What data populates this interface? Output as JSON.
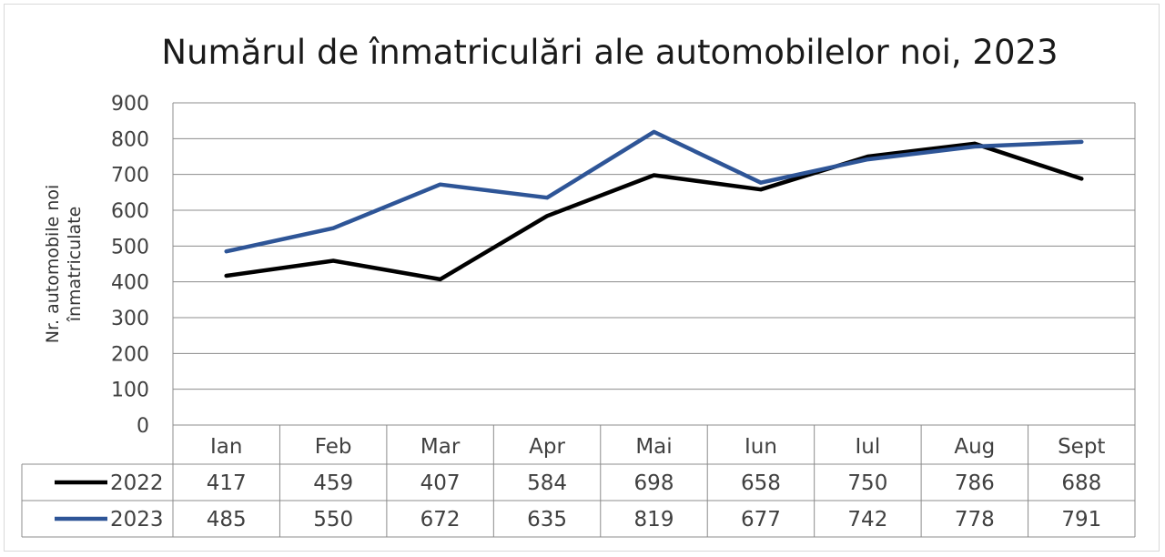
{
  "chart_data": {
    "type": "line",
    "title": "Numărul de înmatriculări ale automobilelor noi, 2023",
    "ylabel_line1": "Nr. automobile noi",
    "ylabel_line2": "înmatriculate",
    "categories": [
      "Ian",
      "Feb",
      "Mar",
      "Apr",
      "Mai",
      "Iun",
      "Iul",
      "Aug",
      "Sept"
    ],
    "ylim": [
      0,
      900
    ],
    "yticks": [
      0,
      100,
      200,
      300,
      400,
      500,
      600,
      700,
      800,
      900
    ],
    "grid": true,
    "legend": "data-table",
    "series": [
      {
        "name": "2022",
        "color": "#000000",
        "values": [
          417,
          459,
          407,
          584,
          698,
          658,
          750,
          786,
          688
        ]
      },
      {
        "name": "2023",
        "color": "#2e5597",
        "values": [
          485,
          550,
          672,
          635,
          819,
          677,
          742,
          778,
          791
        ]
      }
    ]
  }
}
